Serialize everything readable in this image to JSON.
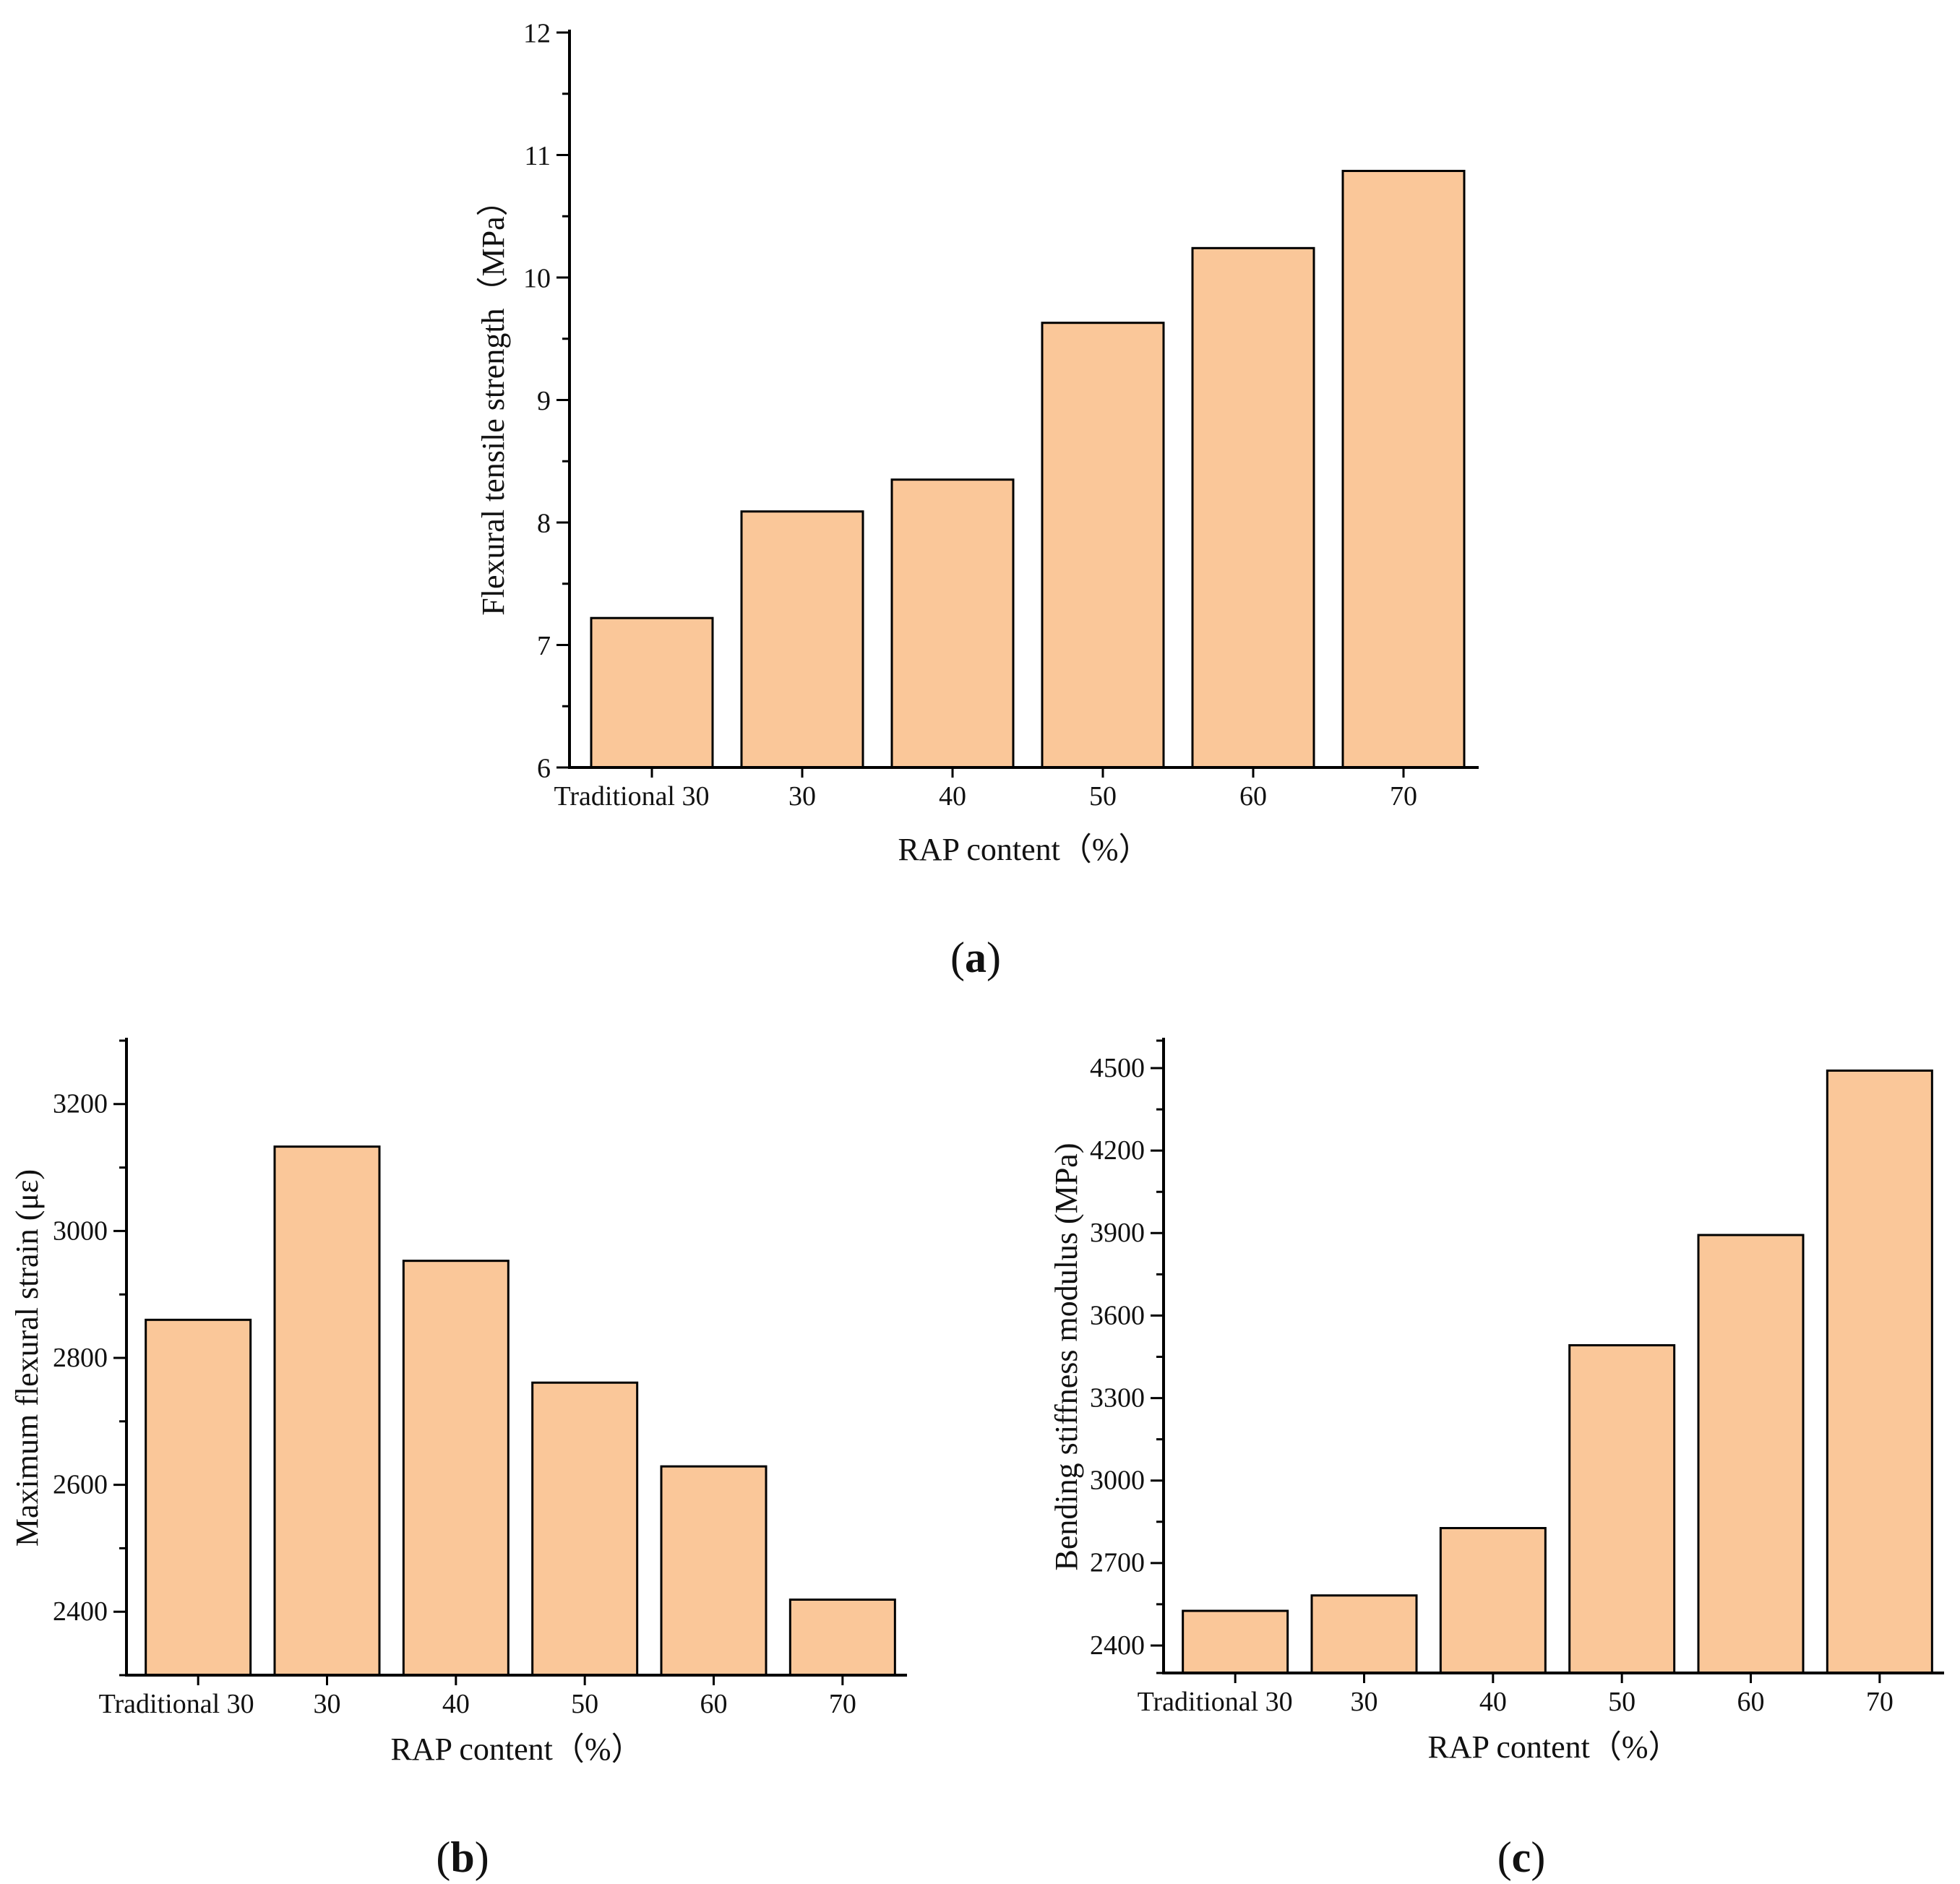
{
  "bar_color": "#fac799",
  "bar_stroke": "#000000",
  "axis_color": "#000000",
  "chart_data": [
    {
      "id": "a",
      "type": "bar",
      "panel_label": "a",
      "categories": [
        "Traditional 30",
        "30",
        "40",
        "50",
        "60",
        "70"
      ],
      "values": [
        7.22,
        8.09,
        8.35,
        9.63,
        10.24,
        10.87
      ],
      "title": "",
      "xlabel": "RAP content（%）",
      "ylabel": "Flexural tensile strength（MPa）",
      "ylim": [
        6,
        12
      ],
      "yticks": [
        6,
        7,
        8,
        9,
        10,
        11,
        12
      ],
      "yticklabels": [
        "6",
        "7",
        "8",
        "9",
        "10",
        "11",
        "12"
      ],
      "minor_ticks": 1,
      "grid": false
    },
    {
      "id": "b",
      "type": "bar",
      "panel_label": "b",
      "categories": [
        "Traditional 30",
        "30",
        "40",
        "50",
        "60",
        "70"
      ],
      "values": [
        2860,
        3133,
        2953,
        2761,
        2629,
        2419
      ],
      "title": "",
      "xlabel": "RAP content（%）",
      "ylabel": "Maximum flexural strain (με)",
      "ylim": [
        2300,
        3300
      ],
      "yticks": [
        2400,
        2600,
        2800,
        3000,
        3200
      ],
      "yticklabels": [
        "2400",
        "2600",
        "2800",
        "3000",
        "3200"
      ],
      "minor_ticks": 1,
      "grid": false
    },
    {
      "id": "c",
      "type": "bar",
      "panel_label": "c",
      "categories": [
        "Traditional 30",
        "30",
        "40",
        "50",
        "60",
        "70"
      ],
      "values": [
        2526,
        2582,
        2827,
        3492,
        3893,
        4491
      ],
      "title": "",
      "xlabel": "RAP content（%）",
      "ylabel": "Bending stiffness modulus (MPa)",
      "ylim": [
        2300,
        4600
      ],
      "yticks": [
        2400,
        2700,
        3000,
        3300,
        3600,
        3900,
        4200,
        4500
      ],
      "yticklabels": [
        "2400",
        "2700",
        "3000",
        "3300",
        "3600",
        "3900",
        "4200",
        "4500"
      ],
      "minor_ticks": 1,
      "grid": false
    }
  ]
}
